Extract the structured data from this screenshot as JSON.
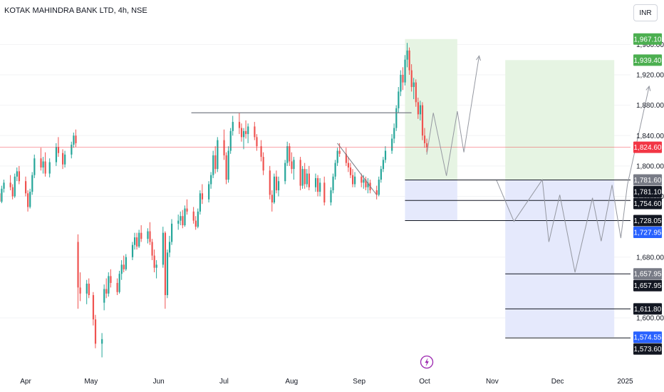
{
  "header": {
    "title": "KOTAK MAHINDRA BANK LTD, 4h, NSE",
    "currency": "INR"
  },
  "colors": {
    "up": "#26a69a",
    "down": "#ef5350",
    "target_zone": "#e6f4e3",
    "stop_zone": "#e5e9fc",
    "price_line": "#f23645",
    "projection": "#9598a1",
    "resistance": "#787b86",
    "level": "#131722",
    "grid": "#f2f3f5"
  },
  "chart_data": {
    "type": "candlestick",
    "title": "KOTAK MAHINDRA BANK LTD, 4h, NSE",
    "ylim": [
      1540,
      1978
    ],
    "y_ticks": [
      "1,600.00",
      "1,680.00",
      "1,760.00",
      "1,800.00",
      "1,840.00",
      "1,880.00",
      "1,920.00",
      "1,960.00"
    ],
    "x_labels": [
      "Apr",
      "May",
      "Jun",
      "Jul",
      "Aug",
      "Sep",
      "Oct",
      "Nov",
      "Dec",
      "2025"
    ],
    "last_price": {
      "value": 1824.6,
      "label": "1,824.60"
    },
    "axis_labels": [
      {
        "label": "1,967.10",
        "value": 1967.1,
        "style": "green"
      },
      {
        "label": "1,939.40",
        "value": 1939.4,
        "style": "green"
      },
      {
        "label": "1,824.60",
        "value": 1824.6,
        "style": "red"
      },
      {
        "label": "1,781.60",
        "value": 1781.6,
        "style": "grey"
      },
      {
        "label": "1,781.10",
        "value": 1781.1,
        "style": "black"
      },
      {
        "label": "1,754.60",
        "value": 1754.6,
        "style": "black"
      },
      {
        "label": "1,728.05",
        "value": 1728.05,
        "style": "black"
      },
      {
        "label": "1,727.95",
        "value": 1727.95,
        "style": "blue"
      },
      {
        "label": "1,657.95",
        "value": 1657.95,
        "style": "grey"
      },
      {
        "label": "1,657.95",
        "value": 1657.95,
        "style": "black"
      },
      {
        "label": "1,611.80",
        "value": 1611.8,
        "style": "black"
      },
      {
        "label": "1,574.55",
        "value": 1574.55,
        "style": "blue"
      },
      {
        "label": "1,573.60",
        "value": 1573.6,
        "style": "black"
      }
    ],
    "resistance_level": 1870,
    "positions": [
      {
        "name": "position-1",
        "entry": 1781.6,
        "target": 1967.1,
        "stop": 1727.95,
        "start_date": "2024-09-22",
        "end_date": "2024-10-16"
      },
      {
        "name": "position-2",
        "entry": 1781.6,
        "target": 1939.4,
        "stop": 1574.55,
        "start_date": "2024-11-07",
        "end_date": "2024-12-27"
      }
    ],
    "levels": [
      {
        "value": 1781.6,
        "start_date": "2024-09-22"
      },
      {
        "value": 1754.6,
        "start_date": "2024-09-22"
      },
      {
        "value": 1728.05,
        "start_date": "2024-09-22"
      },
      {
        "value": 1657.95,
        "start_date": "2024-11-07"
      },
      {
        "value": 1611.8,
        "start_date": "2024-11-07"
      },
      {
        "value": 1573.6,
        "start_date": "2024-11-07"
      }
    ],
    "projection_1": [
      [
        "2024-10-02",
        1815
      ],
      [
        "2024-10-05",
        1870
      ],
      [
        "2024-10-11",
        1787
      ],
      [
        "2024-10-16",
        1872
      ],
      [
        "2024-10-19",
        1818
      ],
      [
        "2024-10-26",
        1945
      ]
    ],
    "projection_2": [
      [
        "2024-11-03",
        1781
      ],
      [
        "2024-11-11",
        1727
      ],
      [
        "2024-11-24",
        1782
      ],
      [
        "2024-11-27",
        1700
      ],
      [
        "2024-12-02",
        1762
      ],
      [
        "2024-12-09",
        1660
      ],
      [
        "2024-12-17",
        1758
      ],
      [
        "2024-12-21",
        1701
      ],
      [
        "2024-12-26",
        1775
      ],
      [
        "2024-12-30",
        1705
      ],
      [
        "2025-01-02",
        1775
      ],
      [
        "2025-01-12",
        1905
      ]
    ],
    "candles_ohlc": [
      [
        "2024-03-18",
        1748,
        1765,
        1743,
        1760
      ],
      [
        "2024-03-19",
        1760,
        1770,
        1754,
        1764
      ],
      [
        "2024-03-20",
        1764,
        1768,
        1750,
        1753
      ],
      [
        "2024-03-21",
        1753,
        1774,
        1751,
        1770
      ],
      [
        "2024-03-22",
        1770,
        1782,
        1765,
        1778
      ],
      [
        "2024-03-25",
        1778,
        1788,
        1768,
        1772
      ],
      [
        "2024-03-26",
        1772,
        1776,
        1756,
        1760
      ],
      [
        "2024-03-27",
        1760,
        1790,
        1758,
        1786
      ],
      [
        "2024-03-28",
        1786,
        1798,
        1780,
        1793
      ],
      [
        "2024-03-29",
        1793,
        1800,
        1776,
        1780
      ],
      [
        "2024-04-01",
        1780,
        1786,
        1760,
        1764
      ],
      [
        "2024-04-02",
        1764,
        1768,
        1740,
        1746
      ],
      [
        "2024-04-03",
        1746,
        1770,
        1744,
        1766
      ],
      [
        "2024-04-04",
        1766,
        1792,
        1762,
        1788
      ],
      [
        "2024-04-05",
        1788,
        1815,
        1784,
        1810
      ],
      [
        "2024-04-08",
        1810,
        1824,
        1794,
        1798
      ],
      [
        "2024-04-09",
        1798,
        1812,
        1790,
        1806
      ],
      [
        "2024-04-10",
        1806,
        1818,
        1786,
        1790
      ],
      [
        "2024-04-12",
        1790,
        1810,
        1785,
        1805
      ],
      [
        "2024-04-15",
        1805,
        1830,
        1800,
        1825
      ],
      [
        "2024-04-16",
        1825,
        1838,
        1812,
        1817
      ],
      [
        "2024-04-18",
        1817,
        1822,
        1796,
        1802
      ],
      [
        "2024-04-19",
        1802,
        1820,
        1798,
        1815
      ],
      [
        "2024-04-22",
        1815,
        1832,
        1810,
        1828
      ],
      [
        "2024-04-23",
        1828,
        1844,
        1824,
        1840
      ],
      [
        "2024-04-24",
        1840,
        1848,
        1825,
        1830
      ],
      [
        "2024-04-25",
        1700,
        1710,
        1612,
        1640
      ],
      [
        "2024-04-26",
        1640,
        1660,
        1622,
        1632
      ],
      [
        "2024-04-29",
        1632,
        1650,
        1618,
        1645
      ],
      [
        "2024-04-30",
        1645,
        1652,
        1626,
        1630
      ],
      [
        "2024-05-02",
        1630,
        1634,
        1590,
        1598
      ],
      [
        "2024-05-03",
        1598,
        1604,
        1560,
        1566
      ],
      [
        "2024-05-06",
        1566,
        1580,
        1548,
        1572
      ],
      [
        "2024-05-07",
        1620,
        1644,
        1610,
        1638
      ],
      [
        "2024-05-08",
        1638,
        1652,
        1626,
        1632
      ],
      [
        "2024-05-09",
        1632,
        1660,
        1628,
        1655
      ],
      [
        "2024-05-10",
        1655,
        1664,
        1640,
        1646
      ],
      [
        "2024-05-13",
        1646,
        1652,
        1630,
        1634
      ],
      [
        "2024-05-14",
        1634,
        1662,
        1632,
        1658
      ],
      [
        "2024-05-15",
        1658,
        1676,
        1650,
        1670
      ],
      [
        "2024-05-16",
        1670,
        1682,
        1660,
        1664
      ],
      [
        "2024-05-17",
        1664,
        1684,
        1662,
        1680
      ],
      [
        "2024-05-20",
        1680,
        1700,
        1676,
        1696
      ],
      [
        "2024-05-21",
        1696,
        1712,
        1690,
        1706
      ],
      [
        "2024-05-22",
        1706,
        1712,
        1690,
        1694
      ],
      [
        "2024-05-23",
        1694,
        1716,
        1692,
        1712
      ],
      [
        "2024-05-24",
        1712,
        1722,
        1700,
        1704
      ],
      [
        "2024-05-27",
        1704,
        1718,
        1698,
        1714
      ],
      [
        "2024-05-28",
        1714,
        1726,
        1696,
        1700
      ],
      [
        "2024-05-29",
        1700,
        1704,
        1676,
        1682
      ],
      [
        "2024-05-30",
        1682,
        1690,
        1660,
        1666
      ],
      [
        "2024-05-31",
        1666,
        1676,
        1652,
        1670
      ],
      [
        "2024-06-03",
        1670,
        1720,
        1666,
        1712
      ],
      [
        "2024-06-04",
        1712,
        1714,
        1612,
        1630
      ],
      [
        "2024-06-05",
        1630,
        1690,
        1626,
        1686
      ],
      [
        "2024-06-06",
        1686,
        1708,
        1680,
        1700
      ],
      [
        "2024-06-07",
        1700,
        1730,
        1696,
        1724
      ],
      [
        "2024-06-10",
        1724,
        1736,
        1716,
        1728
      ],
      [
        "2024-06-11",
        1728,
        1740,
        1722,
        1734
      ],
      [
        "2024-06-12",
        1734,
        1742,
        1718,
        1722
      ],
      [
        "2024-06-13",
        1722,
        1748,
        1720,
        1744
      ],
      [
        "2024-06-14",
        1744,
        1756,
        1736,
        1740
      ],
      [
        "2024-06-17",
        1740,
        1746,
        1724,
        1728
      ],
      [
        "2024-06-18",
        1728,
        1734,
        1716,
        1720
      ],
      [
        "2024-06-19",
        1720,
        1744,
        1718,
        1740
      ],
      [
        "2024-06-20",
        1740,
        1768,
        1736,
        1764
      ],
      [
        "2024-06-21",
        1764,
        1776,
        1750,
        1756
      ],
      [
        "2024-06-24",
        1756,
        1780,
        1752,
        1776
      ],
      [
        "2024-06-25",
        1776,
        1792,
        1770,
        1788
      ],
      [
        "2024-06-26",
        1788,
        1820,
        1784,
        1814
      ],
      [
        "2024-06-27",
        1814,
        1826,
        1790,
        1796
      ],
      [
        "2024-06-28",
        1796,
        1838,
        1792,
        1834
      ],
      [
        "2024-07-01",
        1834,
        1848,
        1808,
        1814
      ],
      [
        "2024-07-02",
        1814,
        1818,
        1776,
        1782
      ],
      [
        "2024-07-03",
        1782,
        1826,
        1778,
        1820
      ],
      [
        "2024-07-04",
        1820,
        1850,
        1816,
        1846
      ],
      [
        "2024-07-05",
        1846,
        1866,
        1840,
        1858
      ],
      [
        "2024-07-08",
        1858,
        1870,
        1842,
        1850
      ],
      [
        "2024-07-09",
        1850,
        1856,
        1832,
        1838
      ],
      [
        "2024-07-10",
        1838,
        1850,
        1822,
        1846
      ],
      [
        "2024-07-11",
        1846,
        1860,
        1836,
        1842
      ],
      [
        "2024-07-12",
        1842,
        1856,
        1830,
        1852
      ],
      [
        "2024-07-15",
        1852,
        1858,
        1834,
        1838
      ],
      [
        "2024-07-16",
        1838,
        1842,
        1820,
        1826
      ],
      [
        "2024-07-18",
        1826,
        1834,
        1806,
        1812
      ],
      [
        "2024-07-19",
        1812,
        1818,
        1788,
        1794
      ],
      [
        "2024-07-22",
        1794,
        1800,
        1756,
        1762
      ],
      [
        "2024-07-23",
        1762,
        1768,
        1740,
        1752
      ],
      [
        "2024-07-24",
        1752,
        1790,
        1750,
        1786
      ],
      [
        "2024-07-25",
        1786,
        1794,
        1764,
        1768
      ],
      [
        "2024-07-26",
        1768,
        1786,
        1760,
        1780
      ],
      [
        "2024-07-29",
        1780,
        1808,
        1776,
        1804
      ],
      [
        "2024-07-30",
        1804,
        1832,
        1800,
        1826
      ],
      [
        "2024-07-31",
        1826,
        1830,
        1800,
        1806
      ],
      [
        "2024-08-01",
        1806,
        1818,
        1790,
        1796
      ],
      [
        "2024-08-02",
        1796,
        1812,
        1782,
        1808
      ],
      [
        "2024-08-05",
        1808,
        1812,
        1768,
        1774
      ],
      [
        "2024-08-06",
        1774,
        1800,
        1770,
        1796
      ],
      [
        "2024-08-07",
        1796,
        1804,
        1770,
        1776
      ],
      [
        "2024-08-08",
        1776,
        1796,
        1772,
        1790
      ],
      [
        "2024-08-09",
        1790,
        1800,
        1768,
        1772
      ],
      [
        "2024-08-12",
        1772,
        1790,
        1766,
        1784
      ],
      [
        "2024-08-13",
        1784,
        1788,
        1760,
        1766
      ],
      [
        "2024-08-14",
        1766,
        1784,
        1760,
        1778
      ],
      [
        "2024-08-16",
        1778,
        1786,
        1748,
        1752
      ],
      [
        "2024-08-19",
        1752,
        1772,
        1748,
        1768
      ],
      [
        "2024-08-20",
        1768,
        1790,
        1764,
        1786
      ],
      [
        "2024-08-21",
        1786,
        1808,
        1782,
        1804
      ],
      [
        "2024-08-22",
        1804,
        1824,
        1800,
        1820
      ],
      [
        "2024-08-23",
        1820,
        1830,
        1812,
        1816
      ],
      [
        "2024-08-26",
        1816,
        1824,
        1800,
        1804
      ],
      [
        "2024-08-27",
        1804,
        1812,
        1792,
        1798
      ],
      [
        "2024-08-28",
        1798,
        1804,
        1784,
        1788
      ],
      [
        "2024-08-29",
        1788,
        1796,
        1772,
        1776
      ],
      [
        "2024-08-30",
        1776,
        1792,
        1772,
        1786
      ],
      [
        "2024-09-02",
        1786,
        1790,
        1772,
        1778
      ],
      [
        "2024-09-03",
        1778,
        1788,
        1770,
        1782
      ],
      [
        "2024-09-04",
        1782,
        1786,
        1768,
        1772
      ],
      [
        "2024-09-05",
        1772,
        1784,
        1764,
        1778
      ],
      [
        "2024-09-06",
        1778,
        1782,
        1764,
        1768
      ],
      [
        "2024-09-09",
        1768,
        1774,
        1756,
        1762
      ],
      [
        "2024-09-10",
        1762,
        1786,
        1760,
        1782
      ],
      [
        "2024-09-11",
        1782,
        1800,
        1778,
        1796
      ],
      [
        "2024-09-12",
        1796,
        1812,
        1792,
        1808
      ],
      [
        "2024-09-13",
        1808,
        1826,
        1804,
        1820
      ],
      [
        "2024-09-16",
        1820,
        1842,
        1816,
        1836
      ],
      [
        "2024-09-17",
        1836,
        1856,
        1830,
        1850
      ],
      [
        "2024-09-18",
        1850,
        1880,
        1846,
        1876
      ],
      [
        "2024-09-19",
        1876,
        1904,
        1870,
        1898
      ],
      [
        "2024-09-20",
        1898,
        1926,
        1892,
        1920
      ],
      [
        "2024-09-21",
        1920,
        1930,
        1900,
        1910
      ],
      [
        "2024-09-22",
        1910,
        1946,
        1906,
        1940
      ],
      [
        "2024-09-23",
        1940,
        1962,
        1930,
        1952
      ],
      [
        "2024-09-24",
        1952,
        1956,
        1920,
        1926
      ],
      [
        "2024-09-25",
        1926,
        1934,
        1898,
        1904
      ],
      [
        "2024-09-26",
        1904,
        1916,
        1888,
        1910
      ],
      [
        "2024-09-27",
        1910,
        1914,
        1878,
        1884
      ],
      [
        "2024-09-28",
        1884,
        1890,
        1862,
        1868
      ],
      [
        "2024-09-29",
        1868,
        1886,
        1860,
        1880
      ],
      [
        "2024-09-30",
        1880,
        1884,
        1834,
        1840
      ],
      [
        "2024-10-01",
        1840,
        1850,
        1824,
        1830
      ],
      [
        "2024-10-02",
        1830,
        1836,
        1818,
        1824.6
      ]
    ]
  }
}
